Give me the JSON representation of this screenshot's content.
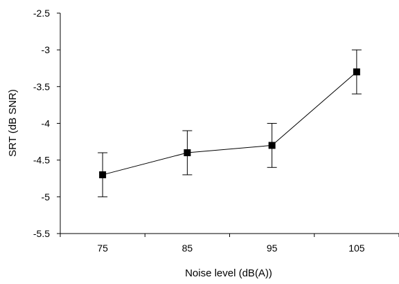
{
  "chart_data": {
    "type": "line",
    "title": "",
    "xlabel": "Noise level (dB(A))",
    "ylabel": "SRT (dB SNR)",
    "categories": [
      "75",
      "85",
      "95",
      "105"
    ],
    "series": [
      {
        "values": [
          -4.7,
          -4.4,
          -4.3,
          -3.3
        ],
        "error_low": [
          -5.0,
          -4.7,
          -4.6,
          -3.6
        ],
        "error_high": [
          -4.4,
          -4.1,
          -4.0,
          -3.0
        ]
      }
    ],
    "ylim": [
      -5.5,
      -2.5
    ],
    "yticks": [
      -2.5,
      -3,
      -3.5,
      -4,
      -4.5,
      -5,
      -5.5
    ],
    "ytick_labels": [
      "-2.5",
      "-3",
      "-3.5",
      "-4",
      "-4.5",
      "-5",
      "-5.5"
    ],
    "grid": false,
    "legend": "none",
    "marker": "square",
    "line_color": "#000000",
    "marker_color": "#000000"
  }
}
